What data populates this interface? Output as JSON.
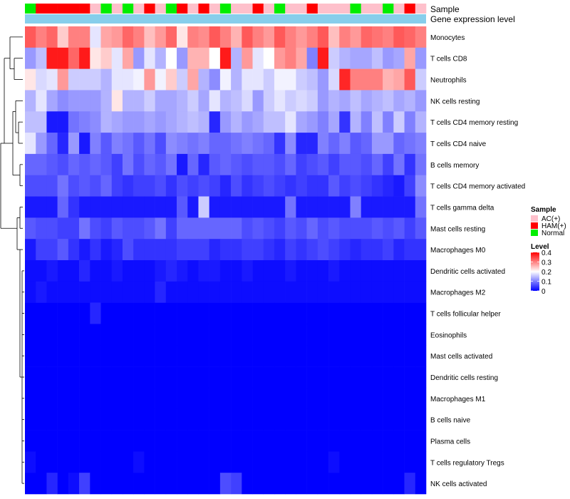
{
  "chart_data": {
    "type": "heatmap",
    "title": "",
    "annotation_tracks": [
      "Sample",
      "Gene expression level"
    ],
    "sample_track": [
      "Normal",
      "HAM(+)",
      "HAM(+)",
      "HAM(+)",
      "HAM(+)",
      "HAM(+)",
      "AC(+)",
      "Normal",
      "AC(+)",
      "Normal",
      "AC(+)",
      "HAM(+)",
      "AC(+)",
      "Normal",
      "HAM(+)",
      "AC(+)",
      "HAM(+)",
      "AC(+)",
      "Normal",
      "AC(+)",
      "AC(+)",
      "HAM(+)",
      "AC(+)",
      "Normal",
      "AC(+)",
      "AC(+)",
      "HAM(+)",
      "AC(+)",
      "AC(+)",
      "AC(+)",
      "Normal",
      "AC(+)",
      "AC(+)",
      "Normal",
      "AC(+)",
      "HAM(+)",
      "AC(+)"
    ],
    "sample_colors": {
      "AC(+)": "#fec0cb",
      "HAM(+)": "#ff0000",
      "Normal": "#00ee00"
    },
    "gene_expression_track_color": "#87ceeb",
    "rows": [
      "Monocytes",
      "T cells CD8",
      "Neutrophils",
      "NK cells resting",
      "T cells CD4 memory resting",
      "T cells CD4 naive",
      "B cells memory",
      "T cells CD4 memory activated",
      "T cells gamma delta",
      "Mast cells resting",
      "Macrophages M0",
      "Dendritic cells activated",
      "Macrophages M2",
      "T cells follicular helper",
      "Eosinophils",
      "Mast cells activated",
      "Dendritic cells resting",
      "Macrophages M1",
      "B cells naive",
      "Plasma cells",
      "T cells regulatory  Tregs",
      "NK cells activated"
    ],
    "values": [
      [
        0.33,
        0.3,
        0.32,
        0.24,
        0.3,
        0.3,
        0.18,
        0.27,
        0.28,
        0.32,
        0.3,
        0.25,
        0.28,
        0.32,
        0.22,
        0.3,
        0.29,
        0.33,
        0.3,
        0.26,
        0.33,
        0.3,
        0.28,
        0.33,
        0.3,
        0.28,
        0.3,
        0.33,
        0.25,
        0.3,
        0.28,
        0.32,
        0.31,
        0.3,
        0.33,
        0.32,
        0.3
      ],
      [
        0.12,
        0.15,
        0.38,
        0.38,
        0.32,
        0.38,
        0.22,
        0.24,
        0.18,
        0.27,
        0.12,
        0.18,
        0.14,
        0.2,
        0.12,
        0.26,
        0.26,
        0.2,
        0.38,
        0.14,
        0.28,
        0.18,
        0.2,
        0.28,
        0.3,
        0.27,
        0.1,
        0.38,
        0.16,
        0.14,
        0.13,
        0.13,
        0.15,
        0.12,
        0.13,
        0.27,
        0.12
      ],
      [
        0.22,
        0.17,
        0.18,
        0.28,
        0.16,
        0.16,
        0.16,
        0.14,
        0.18,
        0.18,
        0.19,
        0.28,
        0.19,
        0.24,
        0.16,
        0.27,
        0.14,
        0.11,
        0.19,
        0.14,
        0.18,
        0.18,
        0.16,
        0.19,
        0.19,
        0.16,
        0.15,
        0.12,
        0.17,
        0.37,
        0.3,
        0.3,
        0.3,
        0.26,
        0.27,
        0.33,
        0.16
      ],
      [
        0.14,
        0.18,
        0.13,
        0.11,
        0.12,
        0.12,
        0.12,
        0.14,
        0.22,
        0.14,
        0.14,
        0.16,
        0.13,
        0.13,
        0.14,
        0.16,
        0.13,
        0.18,
        0.14,
        0.15,
        0.17,
        0.12,
        0.16,
        0.18,
        0.16,
        0.17,
        0.16,
        0.12,
        0.14,
        0.13,
        0.15,
        0.13,
        0.14,
        0.15,
        0.13,
        0.14,
        0.12
      ],
      [
        0.15,
        0.15,
        0.02,
        0.02,
        0.09,
        0.1,
        0.11,
        0.14,
        0.13,
        0.12,
        0.12,
        0.13,
        0.12,
        0.13,
        0.14,
        0.15,
        0.14,
        0.03,
        0.12,
        0.14,
        0.12,
        0.13,
        0.15,
        0.15,
        0.18,
        0.13,
        0.12,
        0.1,
        0.13,
        0.04,
        0.14,
        0.1,
        0.15,
        0.1,
        0.16,
        0.1,
        0.14
      ],
      [
        0.18,
        0.12,
        0.08,
        0.03,
        0.12,
        0.02,
        0.1,
        0.07,
        0.1,
        0.09,
        0.07,
        0.09,
        0.06,
        0.11,
        0.1,
        0.09,
        0.1,
        0.08,
        0.08,
        0.09,
        0.1,
        0.09,
        0.08,
        0.04,
        0.11,
        0.03,
        0.03,
        0.1,
        0.08,
        0.1,
        0.07,
        0.08,
        0.12,
        0.12,
        0.08,
        0.09,
        0.1
      ],
      [
        0.08,
        0.08,
        0.07,
        0.06,
        0.08,
        0.07,
        0.08,
        0.07,
        0.05,
        0.09,
        0.06,
        0.08,
        0.07,
        0.09,
        0.02,
        0.08,
        0.03,
        0.07,
        0.08,
        0.07,
        0.06,
        0.07,
        0.07,
        0.06,
        0.08,
        0.05,
        0.06,
        0.07,
        0.05,
        0.07,
        0.07,
        0.06,
        0.08,
        0.05,
        0.09,
        0.04,
        0.09
      ],
      [
        0.06,
        0.06,
        0.06,
        0.09,
        0.06,
        0.07,
        0.06,
        0.08,
        0.05,
        0.04,
        0.05,
        0.05,
        0.06,
        0.04,
        0.06,
        0.05,
        0.06,
        0.05,
        0.03,
        0.06,
        0.04,
        0.05,
        0.06,
        0.05,
        0.04,
        0.05,
        0.04,
        0.04,
        0.07,
        0.05,
        0.06,
        0.05,
        0.04,
        0.03,
        0.02,
        0.05,
        0.11
      ],
      [
        0.02,
        0.02,
        0.02,
        0.08,
        0.04,
        0.02,
        0.02,
        0.02,
        0.02,
        0.02,
        0.02,
        0.02,
        0.02,
        0.02,
        0.07,
        0.02,
        0.16,
        0.02,
        0.02,
        0.02,
        0.02,
        0.02,
        0.02,
        0.02,
        0.09,
        0.02,
        0.02,
        0.02,
        0.02,
        0.02,
        0.1,
        0.02,
        0.02,
        0.02,
        0.02,
        0.02,
        0.09
      ],
      [
        0.07,
        0.06,
        0.06,
        0.05,
        0.05,
        0.09,
        0.06,
        0.05,
        0.07,
        0.06,
        0.06,
        0.07,
        0.09,
        0.05,
        0.08,
        0.08,
        0.08,
        0.08,
        0.08,
        0.08,
        0.06,
        0.07,
        0.06,
        0.05,
        0.07,
        0.06,
        0.08,
        0.06,
        0.07,
        0.06,
        0.06,
        0.06,
        0.07,
        0.06,
        0.07,
        0.05,
        0.07
      ],
      [
        0.02,
        0.05,
        0.05,
        0.07,
        0.04,
        0.02,
        0.04,
        0.02,
        0.03,
        0.06,
        0.04,
        0.04,
        0.04,
        0.04,
        0.05,
        0.05,
        0.05,
        0.03,
        0.04,
        0.04,
        0.05,
        0.05,
        0.04,
        0.03,
        0.05,
        0.04,
        0.05,
        0.06,
        0.05,
        0.04,
        0.03,
        0.04,
        0.04,
        0.05,
        0.03,
        0.04,
        0.04
      ],
      [
        0.01,
        0.01,
        0.02,
        0.01,
        0.01,
        0.03,
        0.01,
        0.01,
        0.02,
        0.01,
        0.01,
        0.01,
        0.02,
        0.03,
        0.02,
        0.01,
        0.02,
        0.02,
        0.01,
        0.01,
        0.02,
        0.01,
        0.01,
        0.01,
        0.02,
        0.01,
        0.01,
        0.01,
        0.02,
        0.01,
        0.01,
        0.01,
        0.01,
        0.01,
        0.01,
        0.01,
        0.01
      ],
      [
        0.01,
        0.02,
        0.01,
        0.01,
        0.01,
        0.01,
        0.01,
        0.01,
        0.01,
        0.01,
        0.01,
        0.01,
        0.03,
        0.01,
        0.01,
        0.01,
        0.01,
        0.01,
        0.01,
        0.01,
        0.01,
        0.01,
        0.01,
        0.01,
        0.01,
        0.01,
        0.01,
        0.01,
        0.01,
        0.01,
        0.01,
        0.01,
        0.01,
        0.01,
        0.01,
        0.01,
        0.01
      ],
      [
        0.0,
        0.0,
        0.0,
        0.0,
        0.0,
        0.0,
        0.03,
        0.0,
        0.0,
        0.0,
        0.0,
        0.0,
        0.0,
        0.0,
        0.0,
        0.0,
        0.0,
        0.0,
        0.0,
        0.0,
        0.0,
        0.0,
        0.0,
        0.0,
        0.0,
        0.0,
        0.0,
        0.0,
        0.0,
        0.0,
        0.0,
        0.0,
        0.0,
        0.0,
        0.0,
        0.0,
        0.0
      ],
      [
        0.0,
        0.0,
        0.0,
        0.0,
        0.0,
        0.0,
        0.0,
        0.0,
        0.0,
        0.0,
        0.0,
        0.0,
        0.0,
        0.0,
        0.0,
        0.0,
        0.0,
        0.0,
        0.0,
        0.0,
        0.0,
        0.0,
        0.0,
        0.0,
        0.0,
        0.0,
        0.0,
        0.0,
        0.0,
        0.0,
        0.0,
        0.0,
        0.0,
        0.0,
        0.0,
        0.0,
        0.0
      ],
      [
        0.0,
        0.0,
        0.0,
        0.0,
        0.0,
        0.0,
        0.0,
        0.0,
        0.0,
        0.0,
        0.0,
        0.0,
        0.0,
        0.0,
        0.0,
        0.0,
        0.0,
        0.0,
        0.0,
        0.0,
        0.0,
        0.0,
        0.0,
        0.0,
        0.0,
        0.0,
        0.0,
        0.0,
        0.0,
        0.0,
        0.0,
        0.0,
        0.0,
        0.0,
        0.0,
        0.0,
        0.0
      ],
      [
        0.0,
        0.0,
        0.0,
        0.0,
        0.0,
        0.0,
        0.0,
        0.0,
        0.0,
        0.0,
        0.0,
        0.0,
        0.0,
        0.0,
        0.0,
        0.0,
        0.0,
        0.0,
        0.0,
        0.0,
        0.0,
        0.0,
        0.0,
        0.0,
        0.0,
        0.0,
        0.0,
        0.0,
        0.0,
        0.0,
        0.0,
        0.0,
        0.0,
        0.0,
        0.0,
        0.0,
        0.0
      ],
      [
        0.0,
        0.0,
        0.0,
        0.0,
        0.0,
        0.0,
        0.0,
        0.0,
        0.0,
        0.0,
        0.0,
        0.0,
        0.0,
        0.0,
        0.0,
        0.0,
        0.0,
        0.0,
        0.0,
        0.0,
        0.0,
        0.0,
        0.0,
        0.0,
        0.0,
        0.0,
        0.0,
        0.0,
        0.0,
        0.0,
        0.0,
        0.0,
        0.0,
        0.0,
        0.0,
        0.0,
        0.0
      ],
      [
        0.0,
        0.0,
        0.0,
        0.0,
        0.0,
        0.0,
        0.0,
        0.0,
        0.0,
        0.0,
        0.0,
        0.0,
        0.0,
        0.0,
        0.0,
        0.0,
        0.0,
        0.0,
        0.0,
        0.0,
        0.0,
        0.0,
        0.0,
        0.0,
        0.0,
        0.0,
        0.0,
        0.0,
        0.0,
        0.0,
        0.0,
        0.0,
        0.0,
        0.0,
        0.0,
        0.0,
        0.0
      ],
      [
        0.0,
        0.0,
        0.0,
        0.0,
        0.0,
        0.0,
        0.0,
        0.0,
        0.0,
        0.0,
        0.0,
        0.0,
        0.0,
        0.0,
        0.0,
        0.0,
        0.0,
        0.0,
        0.0,
        0.0,
        0.0,
        0.0,
        0.0,
        0.0,
        0.0,
        0.0,
        0.0,
        0.0,
        0.0,
        0.0,
        0.0,
        0.0,
        0.0,
        0.0,
        0.0,
        0.0,
        0.0
      ],
      [
        0.01,
        0.0,
        0.0,
        0.0,
        0.0,
        0.0,
        0.0,
        0.0,
        0.0,
        0.0,
        0.01,
        0.0,
        0.0,
        0.0,
        0.0,
        0.0,
        0.0,
        0.0,
        0.0,
        0.0,
        0.0,
        0.0,
        0.0,
        0.0,
        0.0,
        0.0,
        0.0,
        0.0,
        0.01,
        0.0,
        0.0,
        0.0,
        0.0,
        0.0,
        0.0,
        0.0,
        0.0
      ],
      [
        0.0,
        0.0,
        0.03,
        0.0,
        0.01,
        0.05,
        0.0,
        0.0,
        0.0,
        0.0,
        0.0,
        0.0,
        0.0,
        0.0,
        0.0,
        0.0,
        0.0,
        0.0,
        0.06,
        0.05,
        0.0,
        0.0,
        0.0,
        0.0,
        0.0,
        0.0,
        0.0,
        0.0,
        0.0,
        0.0,
        0.0,
        0.0,
        0.0,
        0.0,
        0.0,
        0.03,
        0.0
      ]
    ],
    "color_scale": {
      "min": 0,
      "mid": 0.2,
      "max": 0.4,
      "low": "#0000ff",
      "midcolor": "#ffffff",
      "high": "#ff0000"
    },
    "legend": {
      "sample_title": "Sample",
      "sample_entries": [
        "AC(+)",
        "HAM(+)",
        "Normal"
      ],
      "level_title": "Level",
      "level_ticks": [
        "0.4",
        "0.3",
        "0.2",
        "0.1",
        "0"
      ],
      "placement": "right"
    },
    "row_dendrogram": true,
    "column_dendrogram": false
  }
}
